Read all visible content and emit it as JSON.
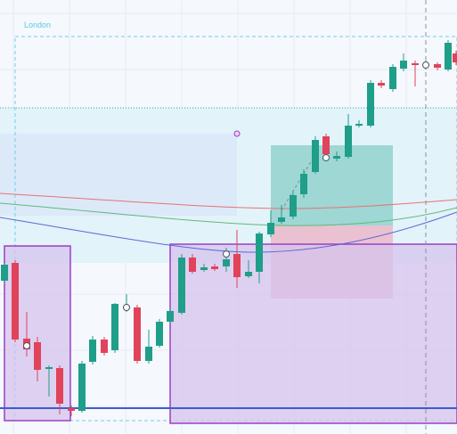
{
  "session_label": "London"
}
